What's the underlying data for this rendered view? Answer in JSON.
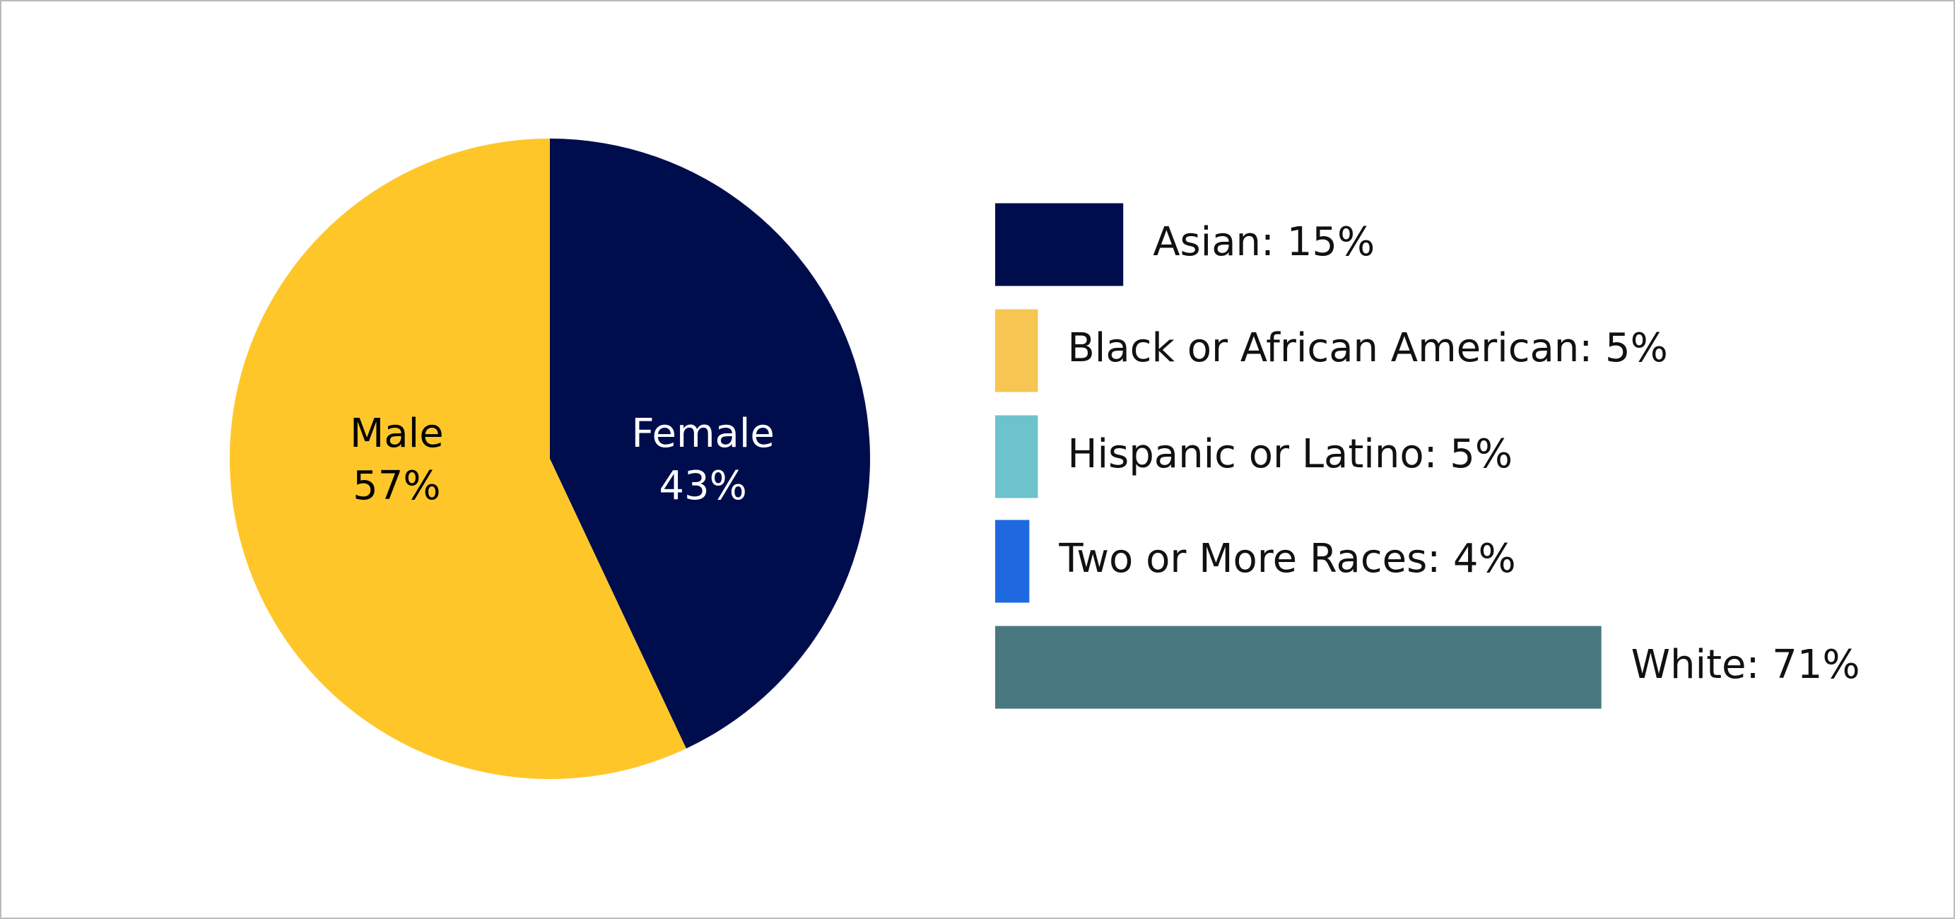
{
  "chart_data": [
    {
      "type": "pie",
      "categories": [
        "Female",
        "Male"
      ],
      "values": [
        43,
        57
      ],
      "value_labels": [
        "43%",
        "57%"
      ],
      "colors": [
        "#000d4d",
        "#ffc629"
      ],
      "label_colors": [
        "#ffffff",
        "#000000"
      ]
    },
    {
      "type": "hbar",
      "values": [
        15,
        5,
        5,
        4,
        71
      ],
      "value_labels": [
        "Asian: 15%",
        "Black or African American: 5%",
        "Hispanic or Latino: 5%",
        "Two or More Races: 4%",
        "White: 71%"
      ],
      "colors": [
        "#000d4d",
        "#f7c552",
        "#6cc3cc",
        "#1f69e0",
        "#4a7880"
      ]
    }
  ]
}
